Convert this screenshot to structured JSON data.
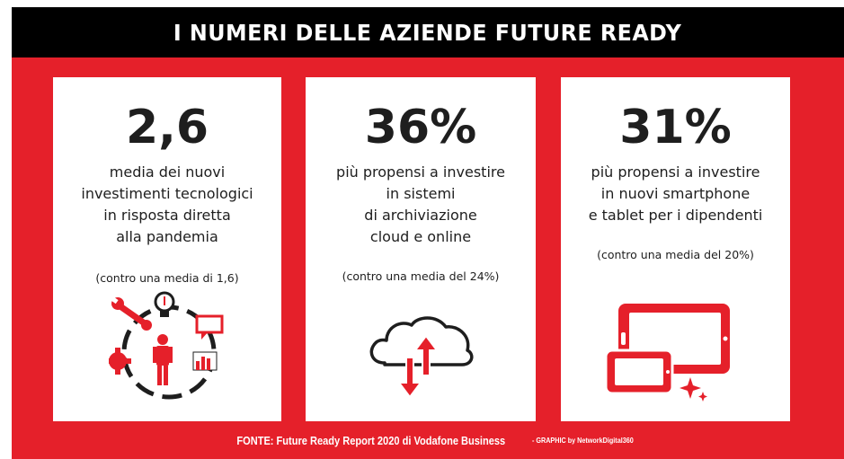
{
  "header": {
    "title": "I NUMERI DELLE AZIENDE FUTURE READY"
  },
  "cards": [
    {
      "stat": "2,6",
      "lines": [
        "media dei nuovi",
        "investimenti tecnologici",
        "in risposta diretta",
        "alla pandemia"
      ],
      "note": "(contro una media di 1,6)",
      "icon": "business-investment-icon"
    },
    {
      "stat": "36%",
      "lines": [
        "più propensi a investire",
        "in sistemi",
        "di archiviazione",
        "cloud e online"
      ],
      "note": "(contro una media del 24%)",
      "icon": "cloud-upload-download-icon"
    },
    {
      "stat": "31%",
      "lines": [
        "più propensi a investire",
        "in nuovi smartphone",
        "e tablet per i dipendenti"
      ],
      "note": "(contro una media del 20%)",
      "icon": "tablet-smartphone-icon"
    }
  ],
  "footer": {
    "source": "FONTE: Future Ready Report 2020 di Vodafone Business",
    "credit": " - GRAPHIC by NetworkDigital360"
  },
  "colors": {
    "accent": "#e5202a",
    "header_bg": "#000000",
    "text": "#1e1e1e"
  }
}
